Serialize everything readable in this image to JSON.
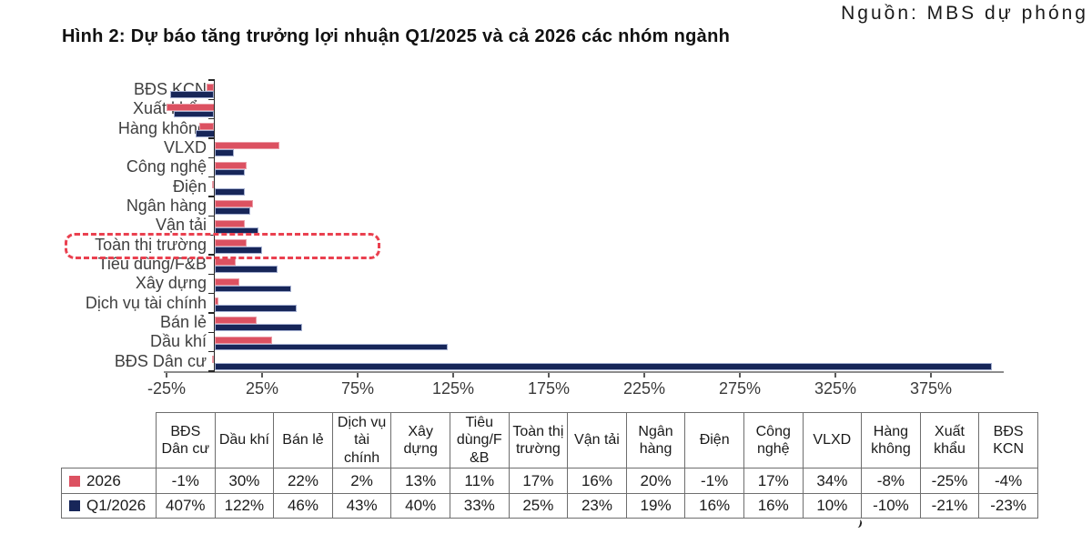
{
  "source_note": "Nguồn: MBS dự phóng",
  "title": "Hình 2: Dự báo tăng trưởng lợi nhuận Q1/2025 và cả 2026 các nhóm ngành",
  "colors": {
    "series_2026": "#dc5161",
    "series_2026_border": "#ea9aa4",
    "series_q1_2026": "#172659",
    "series_q1_2026_border": "#a3aecf",
    "highlight_box": "#ea404f",
    "x_axis_line": "#8c8c8c",
    "y_axis_line": "#262626",
    "table_border": "#6e6e6e"
  },
  "chart_data": {
    "type": "bar",
    "orientation": "horizontal",
    "unit": "%",
    "grid": false,
    "categories_top_to_bottom": [
      "BĐS KCN",
      "Xuất khẩu",
      "Hàng không",
      "VLXD",
      "Công nghệ",
      "Điện",
      "Ngân hàng",
      "Vận tải",
      "Toàn thị trường",
      "Tiêu dùng/F&B",
      "Xây dựng",
      "Dịch vụ tài chính",
      "Bán lẻ",
      "Dầu khí",
      "BĐS Dân cư"
    ],
    "series": [
      {
        "name": "2026",
        "color": "#dc5161",
        "border": "#ea9aa4",
        "values": [
          -4,
          -25,
          -8,
          34,
          17,
          -1,
          20,
          16,
          17,
          11,
          13,
          2,
          22,
          30,
          -1
        ]
      },
      {
        "name": "Q1/2026",
        "color": "#172659",
        "border": "#a3aecf",
        "values": [
          -23,
          -21,
          -10,
          10,
          16,
          16,
          19,
          23,
          25,
          33,
          40,
          43,
          46,
          122,
          407
        ]
      }
    ],
    "x_tick_labels": [
      "-25%",
      "25%",
      "75%",
      "125%",
      "175%",
      "225%",
      "275%",
      "325%",
      "375%"
    ],
    "x_tick_values": [
      -25,
      25,
      75,
      125,
      175,
      225,
      275,
      325,
      375
    ],
    "xlim": [
      -27,
      412
    ],
    "highlighted_category": "Toàn thị trường"
  },
  "table": {
    "columns": [
      "BĐS Dân cư",
      "Dầu khí",
      "Bán lẻ",
      "Dịch vụ tài chính",
      "Xây dựng",
      "Tiêu dùng/F&B",
      "Toàn thị trường",
      "Vận tải",
      "Ngân hàng",
      "Điện",
      "Công nghệ",
      "VLXD",
      "Hàng không",
      "Xuất khẩu",
      "BĐS KCN"
    ],
    "rows": [
      {
        "label": "2026",
        "swatch": "#dc5161",
        "values": [
          "-1%",
          "30%",
          "22%",
          "2%",
          "13%",
          "11%",
          "17%",
          "16%",
          "20%",
          "-1%",
          "17%",
          "34%",
          "-8%",
          "-25%",
          "-4%"
        ]
      },
      {
        "label": "Q1/2026",
        "swatch": "#172659",
        "values": [
          "407%",
          "122%",
          "46%",
          "43%",
          "40%",
          "33%",
          "25%",
          "23%",
          "19%",
          "16%",
          "16%",
          "10%",
          "-10%",
          "-21%",
          "-23%"
        ]
      }
    ]
  }
}
